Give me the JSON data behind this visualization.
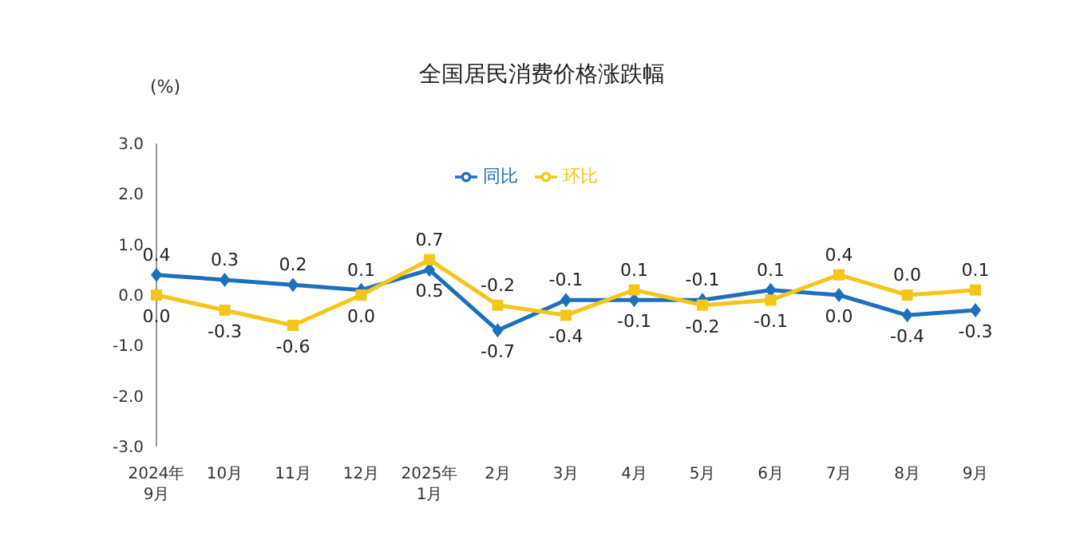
{
  "chart_data": {
    "type": "line",
    "title": "全国居民消费价格涨跌幅",
    "ylabel": "(%)",
    "categories": [
      "2024年\n9月",
      "10月",
      "11月",
      "12月",
      "2025年\n1月",
      "2月",
      "3月",
      "4月",
      "5月",
      "6月",
      "7月",
      "8月",
      "9月"
    ],
    "series": [
      {
        "name": "同比",
        "color": "#1f6fbf",
        "marker": "diamond",
        "values": [
          0.4,
          0.3,
          0.2,
          0.1,
          0.5,
          -0.7,
          -0.1,
          -0.1,
          -0.1,
          0.1,
          0.0,
          -0.4,
          -0.3
        ],
        "value_labels": [
          "0.4",
          "0.3",
          "0.2",
          "0.1",
          "0.5",
          "-0.7",
          "-0.1",
          "-0.1",
          "-0.1",
          "0.1",
          "0.0",
          "-0.4",
          "-0.3"
        ]
      },
      {
        "name": "环比",
        "color": "#f5c518",
        "marker": "square",
        "values": [
          0.0,
          -0.3,
          -0.6,
          0.0,
          0.7,
          -0.2,
          -0.4,
          0.1,
          -0.2,
          -0.1,
          0.4,
          0.0,
          0.1
        ],
        "value_labels": [
          "0.0",
          "-0.3",
          "-0.6",
          "0.0",
          "0.7",
          "-0.2",
          "-0.4",
          "0.1",
          "-0.2",
          "-0.1",
          "0.4",
          "0.0",
          "0.1"
        ]
      }
    ],
    "ylim": [
      -3,
      3
    ],
    "yticks": [
      {
        "value": -3,
        "label": "-3.0"
      },
      {
        "value": -2,
        "label": "-2.0"
      },
      {
        "value": -1,
        "label": "-1.0"
      },
      {
        "value": 0,
        "label": "0.0"
      },
      {
        "value": 1,
        "label": "1.0"
      },
      {
        "value": 2,
        "label": "2.0"
      },
      {
        "value": 3,
        "label": "3.0"
      }
    ],
    "grid": false,
    "legend": "top",
    "line_style": "solid"
  }
}
